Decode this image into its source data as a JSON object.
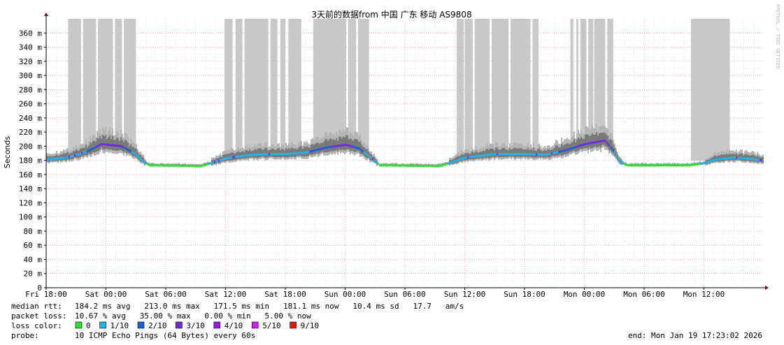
{
  "chart_data": {
    "type": "area",
    "title": "3天前的数据from 中国 广东 移动 AS9808",
    "ylabel": "Seconds",
    "watermark": "RRDTOOL / TOBI OETIKER",
    "ylim_ms": [
      0,
      380
    ],
    "yticks": [
      {
        "v": 0,
        "label": "0"
      },
      {
        "v": 20,
        "label": "20 m"
      },
      {
        "v": 40,
        "label": "40 m"
      },
      {
        "v": 60,
        "label": "60 m"
      },
      {
        "v": 80,
        "label": "80 m"
      },
      {
        "v": 100,
        "label": "100 m"
      },
      {
        "v": 120,
        "label": "120 m"
      },
      {
        "v": 140,
        "label": "140 m"
      },
      {
        "v": 160,
        "label": "160 m"
      },
      {
        "v": 180,
        "label": "180 m"
      },
      {
        "v": 200,
        "label": "200 m"
      },
      {
        "v": 220,
        "label": "220 m"
      },
      {
        "v": 240,
        "label": "240 m"
      },
      {
        "v": 260,
        "label": "260 m"
      },
      {
        "v": 280,
        "label": "280 m"
      },
      {
        "v": 300,
        "label": "300 m"
      },
      {
        "v": 320,
        "label": "320 m"
      },
      {
        "v": 340,
        "label": "340 m"
      },
      {
        "v": 360,
        "label": "360 m"
      }
    ],
    "x_hours_range": [
      0,
      72
    ],
    "xticks": [
      {
        "h": 0,
        "label": "Fri 18:00"
      },
      {
        "h": 6,
        "label": "Sat 00:00"
      },
      {
        "h": 12,
        "label": "Sat 06:00"
      },
      {
        "h": 18,
        "label": "Sat 12:00"
      },
      {
        "h": 24,
        "label": "Sat 18:00"
      },
      {
        "h": 30,
        "label": "Sun 00:00"
      },
      {
        "h": 36,
        "label": "Sun 06:00"
      },
      {
        "h": 42,
        "label": "Sun 12:00"
      },
      {
        "h": 48,
        "label": "Sun 18:00"
      },
      {
        "h": 54,
        "label": "Mon 00:00"
      },
      {
        "h": 60,
        "label": "Mon 06:00"
      },
      {
        "h": 66,
        "label": "Mon 12:00"
      }
    ],
    "median_profile": [
      {
        "h": 0,
        "ms": 181
      },
      {
        "h": 2,
        "ms": 184
      },
      {
        "h": 4,
        "ms": 192
      },
      {
        "h": 5.5,
        "ms": 203
      },
      {
        "h": 7.5,
        "ms": 200
      },
      {
        "h": 8.8,
        "ms": 190
      },
      {
        "h": 9.8,
        "ms": 177
      },
      {
        "h": 10.3,
        "ms": 173
      },
      {
        "h": 15.5,
        "ms": 172
      },
      {
        "h": 16.5,
        "ms": 176
      },
      {
        "h": 18,
        "ms": 183
      },
      {
        "h": 20,
        "ms": 187
      },
      {
        "h": 22,
        "ms": 189
      },
      {
        "h": 24,
        "ms": 189
      },
      {
        "h": 26,
        "ms": 191
      },
      {
        "h": 28,
        "ms": 198
      },
      {
        "h": 30,
        "ms": 202
      },
      {
        "h": 31.3,
        "ms": 197
      },
      {
        "h": 32.6,
        "ms": 183
      },
      {
        "h": 33.4,
        "ms": 173
      },
      {
        "h": 39.5,
        "ms": 172
      },
      {
        "h": 40.8,
        "ms": 178
      },
      {
        "h": 42,
        "ms": 184
      },
      {
        "h": 45,
        "ms": 189
      },
      {
        "h": 48,
        "ms": 189
      },
      {
        "h": 50,
        "ms": 188
      },
      {
        "h": 52,
        "ms": 194
      },
      {
        "h": 54,
        "ms": 203
      },
      {
        "h": 56,
        "ms": 208
      },
      {
        "h": 56.8,
        "ms": 195
      },
      {
        "h": 57.5,
        "ms": 178
      },
      {
        "h": 58.2,
        "ms": 173
      },
      {
        "h": 64.5,
        "ms": 173
      },
      {
        "h": 66,
        "ms": 176
      },
      {
        "h": 67,
        "ms": 181
      },
      {
        "h": 69,
        "ms": 184
      },
      {
        "h": 72,
        "ms": 180
      }
    ],
    "loss_spans_hours": [
      [
        2.2,
        3.5
      ],
      [
        3.7,
        5.0
      ],
      [
        5.2,
        6.7
      ],
      [
        6.9,
        7.6
      ],
      [
        7.8,
        9.0
      ],
      [
        17.9,
        18.7
      ],
      [
        19.0,
        19.7
      ],
      [
        19.9,
        22.3
      ],
      [
        22.5,
        23.2
      ],
      [
        23.5,
        24.0
      ],
      [
        24.3,
        25.6
      ],
      [
        26.8,
        30.1
      ],
      [
        30.3,
        31.1
      ],
      [
        31.3,
        32.4
      ],
      [
        41.2,
        41.9
      ],
      [
        42.0,
        42.8
      ],
      [
        43.0,
        44.5
      ],
      [
        44.7,
        46.4
      ],
      [
        46.6,
        48.6
      ],
      [
        48.8,
        49.4
      ],
      [
        52.6,
        52.9
      ],
      [
        53.2,
        53.4
      ],
      [
        53.6,
        54.2
      ],
      [
        54.4,
        54.9
      ],
      [
        55.0,
        56.1
      ],
      [
        56.3,
        56.9
      ],
      [
        64.7,
        68.6
      ]
    ],
    "loss_levels": [
      {
        "label": "0",
        "color": "#2de02d"
      },
      {
        "label": "1/10",
        "color": "#22b3e6"
      },
      {
        "label": "2/10",
        "color": "#1b5fd6"
      },
      {
        "label": "3/10",
        "color": "#6a2fd8"
      },
      {
        "label": "4/10",
        "color": "#8b1ff0"
      },
      {
        "label": "5/10",
        "color": "#d21ff0"
      },
      {
        "label": "9/10",
        "color": "#f01010"
      }
    ]
  },
  "legend": {
    "rtt_label": "median rtt:",
    "rtt_values": "184.2 ms avg   213.0 ms max   171.5 ms min   181.1 ms now   10.4 ms sd   17.7   am/s",
    "loss_label": "packet loss:",
    "loss_values": "10.67 % avg   35.00 % max   0.00 % min   5.00 % now",
    "color_label": "loss color:",
    "probe_label": "probe:",
    "probe_value": "10 ICMP Echo Pings (64 Bytes) every 60s",
    "end_value": "end: Mon Jan 19 17:23:02 2026"
  }
}
